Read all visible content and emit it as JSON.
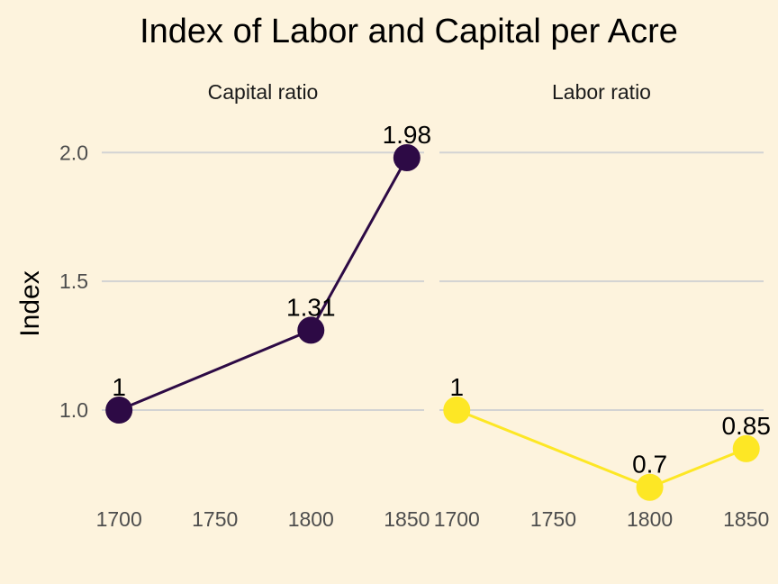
{
  "chart_data": {
    "type": "line",
    "title": "Index of Labor and Capital per Acre",
    "ylabel": "Index",
    "xlabel": "",
    "x_ticks": [
      1700,
      1750,
      1800,
      1850
    ],
    "y_ticks": [
      "1.0",
      "1.5",
      "2.0"
    ],
    "ylim": [
      0.65,
      2.12
    ],
    "xlim": [
      1691,
      1859
    ],
    "grid": true,
    "facets": [
      {
        "name": "Capital ratio",
        "color": "#2d0a45",
        "x": [
          1700,
          1800,
          1850
        ],
        "values": [
          1,
          1.31,
          1.98
        ],
        "labels": [
          "1",
          "1.31",
          "1.98"
        ]
      },
      {
        "name": "Labor ratio",
        "color": "#fde725",
        "x": [
          1700,
          1800,
          1850
        ],
        "values": [
          1,
          0.7,
          0.85
        ],
        "labels": [
          "1",
          "0.7",
          "0.85"
        ]
      }
    ]
  }
}
